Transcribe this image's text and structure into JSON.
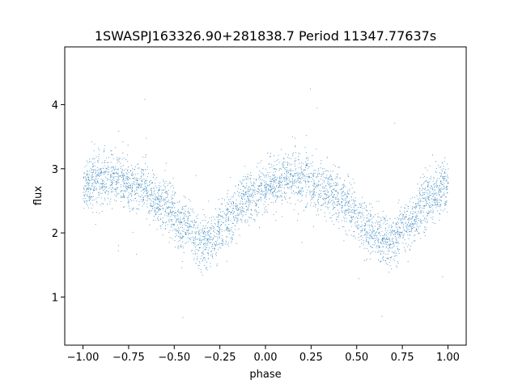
{
  "chart_data": {
    "type": "scatter",
    "title": "1SWASPJ163326.90+281838.7 Period 11347.77637s",
    "xlabel": "phase",
    "ylabel": "flux",
    "xlim": [
      -1.1,
      1.1
    ],
    "ylim": [
      0.25,
      4.9
    ],
    "xticks": [
      -1.0,
      -0.75,
      -0.5,
      -0.25,
      0.0,
      0.25,
      0.5,
      0.75,
      1.0
    ],
    "xtick_labels": [
      "−1.00",
      "−0.75",
      "−0.50",
      "−0.25",
      "0.00",
      "0.25",
      "0.50",
      "0.75",
      "1.00"
    ],
    "yticks": [
      1,
      2,
      3,
      4
    ],
    "ytick_labels": [
      "1",
      "2",
      "3",
      "4"
    ],
    "grid": false,
    "point_color": "#1f77b4",
    "series": [
      {
        "description_of_trend": [
          {
            "x": -1.0,
            "y": 2.75
          },
          {
            "x": -0.85,
            "y": 2.88
          },
          {
            "x": -0.7,
            "y": 2.75
          },
          {
            "x": -0.55,
            "y": 2.45
          },
          {
            "x": -0.45,
            "y": 2.1
          },
          {
            "x": -0.33,
            "y": 1.85
          },
          {
            "x": -0.2,
            "y": 2.2
          },
          {
            "x": -0.1,
            "y": 2.55
          },
          {
            "x": 0.05,
            "y": 2.8
          },
          {
            "x": 0.15,
            "y": 2.88
          },
          {
            "x": 0.3,
            "y": 2.75
          },
          {
            "x": 0.45,
            "y": 2.45
          },
          {
            "x": 0.55,
            "y": 2.1
          },
          {
            "x": 0.67,
            "y": 1.85
          },
          {
            "x": 0.8,
            "y": 2.2
          },
          {
            "x": 0.9,
            "y": 2.55
          },
          {
            "x": 1.0,
            "y": 2.75
          }
        ]
      }
    ]
  }
}
